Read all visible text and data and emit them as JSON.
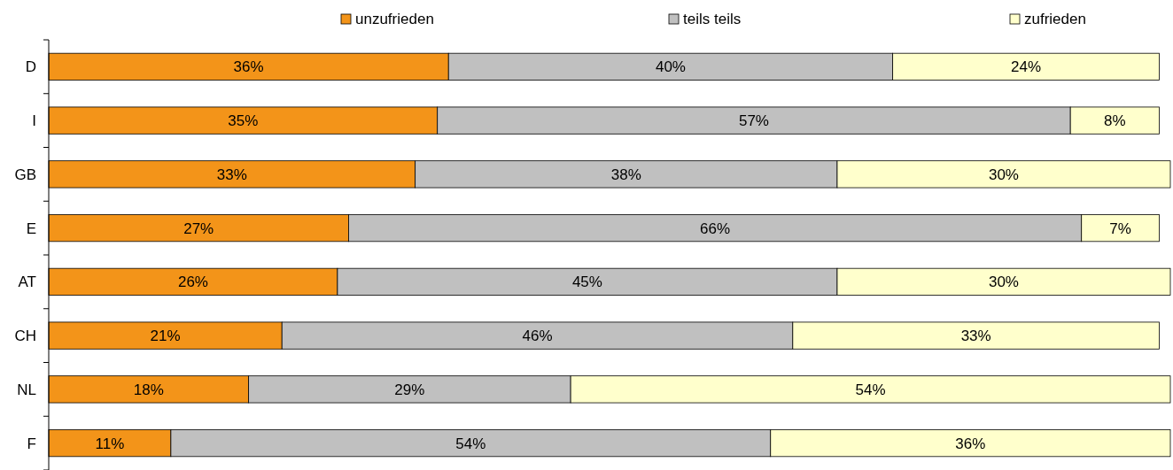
{
  "chart_data": {
    "type": "bar",
    "orientation": "horizontal",
    "stacked": true,
    "legend": "top",
    "categories": [
      "D",
      "I",
      "GB",
      "E",
      "AT",
      "CH",
      "NL",
      "F"
    ],
    "series": [
      {
        "name": "unzufrieden",
        "color": "#f39419",
        "values": [
          36,
          35,
          33,
          27,
          26,
          21,
          18,
          11
        ],
        "value_labels": [
          "36%",
          "35%",
          "33%",
          "27%",
          "26%",
          "21%",
          "18%",
          "11%"
        ]
      },
      {
        "name": "teils teils",
        "color": "#c0c0c0",
        "values": [
          40,
          57,
          38,
          66,
          45,
          46,
          29,
          54
        ],
        "value_labels": [
          "40%",
          "57%",
          "38%",
          "66%",
          "45%",
          "46%",
          "29%",
          "54%"
        ]
      },
      {
        "name": "zufrieden",
        "color": "#ffffcc",
        "values": [
          24,
          8,
          30,
          7,
          30,
          33,
          54,
          36
        ],
        "value_labels": [
          "24%",
          "8%",
          "30%",
          "7%",
          "30%",
          "33%",
          "54%",
          "36%"
        ]
      }
    ]
  }
}
